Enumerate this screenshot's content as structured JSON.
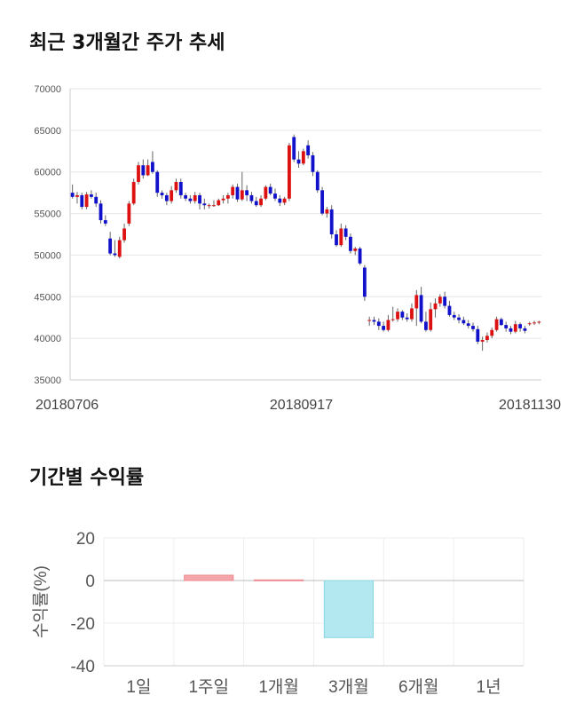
{
  "titles": {
    "price_trend": "최근 3개월간 주가 추세",
    "period_returns": "기간별 수익률"
  },
  "chart_data": [
    {
      "type": "candlestick",
      "title": "최근 3개월간 주가 추세",
      "ylim": [
        35000,
        70000
      ],
      "yticks": [
        35000,
        40000,
        45000,
        50000,
        55000,
        60000,
        65000,
        70000
      ],
      "xtick_labels": [
        "20180706",
        "20180917",
        "20181130"
      ],
      "grid": true,
      "up_color": "#dd1111",
      "down_color": "#1111cc",
      "candles": [
        [
          57500,
          58500,
          56800,
          57000
        ],
        [
          57000,
          57600,
          56200,
          57200
        ],
        [
          57200,
          57500,
          55500,
          55800
        ],
        [
          55800,
          57600,
          55500,
          57300
        ],
        [
          57300,
          57800,
          56800,
          57000
        ],
        [
          57000,
          57500,
          55800,
          56200
        ],
        [
          56200,
          56600,
          53800,
          54200
        ],
        [
          54200,
          54800,
          53500,
          53800
        ],
        [
          52000,
          52800,
          50000,
          50200
        ],
        [
          50200,
          51800,
          49800,
          50000
        ],
        [
          49800,
          52200,
          49600,
          51800
        ],
        [
          51800,
          53800,
          51500,
          53200
        ],
        [
          53800,
          56500,
          53500,
          56200
        ],
        [
          56200,
          59200,
          56000,
          58800
        ],
        [
          58800,
          61200,
          58500,
          60800
        ],
        [
          60800,
          61500,
          59200,
          59600
        ],
        [
          59600,
          61500,
          59500,
          60800
        ],
        [
          61200,
          62500,
          59800,
          60000
        ],
        [
          60000,
          60200,
          57000,
          57500
        ],
        [
          57500,
          57800,
          56800,
          57200
        ],
        [
          57200,
          57500,
          56000,
          56500
        ],
        [
          56500,
          58300,
          56200,
          57800
        ],
        [
          57800,
          59200,
          57500,
          58800
        ],
        [
          58800,
          59200,
          56800,
          57200
        ],
        [
          57200,
          57500,
          56500,
          56800
        ],
        [
          56800,
          57200,
          56200,
          56500
        ],
        [
          56500,
          57600,
          56200,
          57200
        ],
        [
          57200,
          57500,
          55500,
          56200
        ],
        [
          56200,
          56800,
          55500,
          56000
        ],
        [
          56000,
          56200,
          55600,
          56000
        ],
        [
          56000,
          56600,
          55800,
          56000
        ],
        [
          56000,
          56800,
          55900,
          56600
        ],
        [
          56600,
          57200,
          56200,
          56800
        ],
        [
          56800,
          57500,
          56200,
          57200
        ],
        [
          57200,
          58500,
          56800,
          58200
        ],
        [
          58200,
          58600,
          56400,
          56700
        ],
        [
          56700,
          60000,
          56500,
          57800
        ],
        [
          57800,
          58400,
          56500,
          57200
        ],
        [
          57200,
          57600,
          56200,
          56500
        ],
        [
          56500,
          57000,
          55800,
          56000
        ],
        [
          56000,
          57200,
          55800,
          56800
        ],
        [
          56800,
          58400,
          56600,
          58200
        ],
        [
          58200,
          58600,
          57200,
          57400
        ],
        [
          57400,
          58000,
          56500,
          56800
        ],
        [
          56800,
          57200,
          55900,
          56300
        ],
        [
          56300,
          57000,
          56000,
          56800
        ],
        [
          56800,
          63500,
          56500,
          63200
        ],
        [
          64200,
          64500,
          61200,
          61500
        ],
        [
          61500,
          62500,
          60500,
          61000
        ],
        [
          61000,
          62800,
          60800,
          62500
        ],
        [
          63200,
          63800,
          61600,
          62000
        ],
        [
          62000,
          62400,
          59500,
          60000
        ],
        [
          60000,
          60200,
          57500,
          57800
        ],
        [
          57800,
          58200,
          54800,
          55000
        ],
        [
          55000,
          55800,
          54500,
          55500
        ],
        [
          55500,
          56000,
          52000,
          52500
        ],
        [
          52500,
          53000,
          51000,
          51200
        ],
        [
          51200,
          53800,
          51000,
          53200
        ],
        [
          53200,
          53600,
          51800,
          52200
        ],
        [
          52200,
          52600,
          50200,
          50500
        ],
        [
          50500,
          51000,
          50000,
          50800
        ],
        [
          50800,
          51000,
          48800,
          49000
        ],
        [
          48500,
          48800,
          44500,
          45000
        ],
        [
          42200,
          42600,
          41500,
          42200
        ],
        [
          42200,
          42600,
          41600,
          42000
        ],
        [
          42000,
          42400,
          41000,
          41500
        ],
        [
          41500,
          42000,
          40800,
          41000
        ],
        [
          41000,
          42800,
          40800,
          42200
        ],
        [
          42200,
          43800,
          42000,
          42300
        ],
        [
          42300,
          43600,
          42000,
          43200
        ],
        [
          43200,
          43400,
          42200,
          42500
        ],
        [
          42500,
          43000,
          42000,
          42300
        ],
        [
          42300,
          44200,
          42000,
          43600
        ],
        [
          43600,
          45800,
          41500,
          45200
        ],
        [
          45200,
          46200,
          41800,
          42000
        ],
        [
          42000,
          43200,
          40800,
          41000
        ],
        [
          41000,
          44300,
          40800,
          43500
        ],
        [
          43500,
          44800,
          42500,
          44200
        ],
        [
          44200,
          45300,
          43800,
          45000
        ],
        [
          45000,
          45600,
          43600,
          43900
        ],
        [
          43900,
          44500,
          42600,
          42800
        ],
        [
          42800,
          43200,
          42200,
          42500
        ],
        [
          42500,
          42900,
          41800,
          42200
        ],
        [
          42200,
          42600,
          41600,
          41800
        ],
        [
          41800,
          42200,
          41200,
          41500
        ],
        [
          41500,
          41900,
          40800,
          41100
        ],
        [
          41100,
          41500,
          39300,
          39600
        ],
        [
          39600,
          40200,
          38500,
          39800
        ],
        [
          39800,
          40700,
          39500,
          40300
        ],
        [
          40300,
          41300,
          40000,
          41000
        ],
        [
          41000,
          42600,
          40800,
          42300
        ],
        [
          42300,
          42500,
          41500,
          41600
        ],
        [
          41600,
          42000,
          40800,
          41200
        ],
        [
          41200,
          41500,
          40500,
          40800
        ],
        [
          40800,
          42100,
          40600,
          41700
        ],
        [
          41700,
          41900,
          40800,
          41200
        ],
        [
          41200,
          41500,
          40600,
          40900
        ],
        [
          41700,
          42000,
          41500,
          41800
        ],
        [
          41800,
          42100,
          41600,
          41900
        ],
        [
          41900,
          42100,
          41700,
          42000
        ]
      ]
    },
    {
      "type": "bar",
      "title": "기간별 수익률",
      "ylabel": "수익률(%)",
      "categories": [
        "1일",
        "1주일",
        "1개월",
        "3개월",
        "6개월",
        "1년"
      ],
      "values": [
        0,
        2.5,
        0.3,
        -26.8,
        0,
        0
      ],
      "ylim": [
        -40,
        20
      ],
      "yticks": [
        20,
        0,
        -20,
        -40
      ],
      "grid": true,
      "pos_color": "#f4a6ab",
      "neg_color": "#b3e8f0"
    }
  ]
}
